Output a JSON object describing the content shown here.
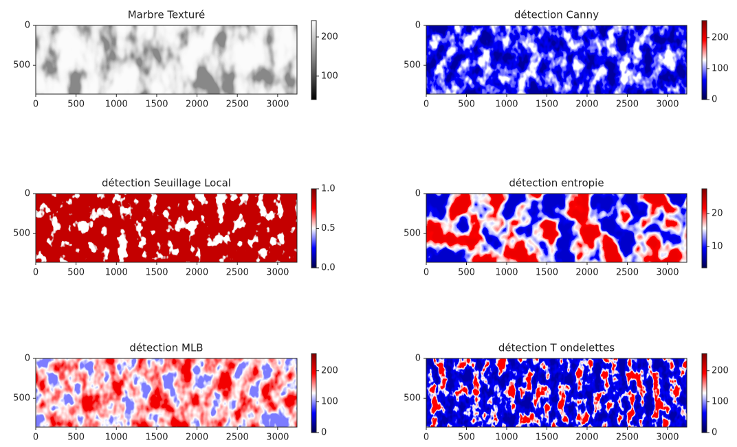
{
  "chart_data": [
    {
      "type": "image",
      "title": "Marbre Texturé",
      "xlim": [
        0,
        3240
      ],
      "ylim": [
        860,
        0
      ],
      "xticks": [
        0,
        500,
        1000,
        1500,
        2000,
        2500,
        3000
      ],
      "yticks": [
        0,
        500
      ],
      "colormap": "gray",
      "clim": [
        40,
        242
      ],
      "cticks": [
        100,
        200
      ]
    },
    {
      "type": "image",
      "title": "détection Canny",
      "xlim": [
        0,
        3240
      ],
      "ylim": [
        860,
        0
      ],
      "xticks": [
        0,
        500,
        1000,
        1500,
        2000,
        2500,
        3000
      ],
      "yticks": [
        0,
        500
      ],
      "colormap": "seismic",
      "clim": [
        0,
        255
      ],
      "cticks": [
        0,
        100,
        200
      ]
    },
    {
      "type": "image",
      "title": "détection Seuillage Local",
      "xlim": [
        0,
        3240
      ],
      "ylim": [
        860,
        0
      ],
      "xticks": [
        0,
        500,
        1000,
        1500,
        2000,
        2500,
        3000
      ],
      "yticks": [
        0,
        500
      ],
      "colormap": "seismic",
      "clim": [
        0,
        1
      ],
      "cticks": [
        {
          "value": 0,
          "label": "0.0"
        },
        0.5,
        {
          "value": 1,
          "label": "1.0"
        }
      ]
    },
    {
      "type": "image",
      "title": "détection entropie",
      "xlim": [
        0,
        3240
      ],
      "ylim": [
        860,
        0
      ],
      "xticks": [
        0,
        500,
        1000,
        1500,
        2000,
        2500,
        3000
      ],
      "yticks": [
        0,
        500
      ],
      "colormap": "seismic",
      "clim": [
        3.5,
        27.5
      ],
      "cticks": [
        10,
        20
      ]
    },
    {
      "type": "image",
      "title": "détection MLB",
      "xlim": [
        0,
        3240
      ],
      "ylim": [
        860,
        0
      ],
      "xticks": [
        0,
        500,
        1000,
        1500,
        2000,
        2500,
        3000
      ],
      "yticks": [
        0,
        500
      ],
      "colormap": "seismic",
      "clim": [
        0,
        255
      ],
      "cticks": [
        0,
        100,
        200
      ]
    },
    {
      "type": "image",
      "title": "détection T ondelettes",
      "xlim": [
        0,
        3240
      ],
      "ylim": [
        860,
        0
      ],
      "xticks": [
        0,
        500,
        1000,
        1500,
        2000,
        2500,
        3000
      ],
      "yticks": [
        0,
        500
      ],
      "colormap": "seismic",
      "clim": [
        0,
        255
      ],
      "cticks": [
        0,
        100,
        200
      ]
    }
  ]
}
